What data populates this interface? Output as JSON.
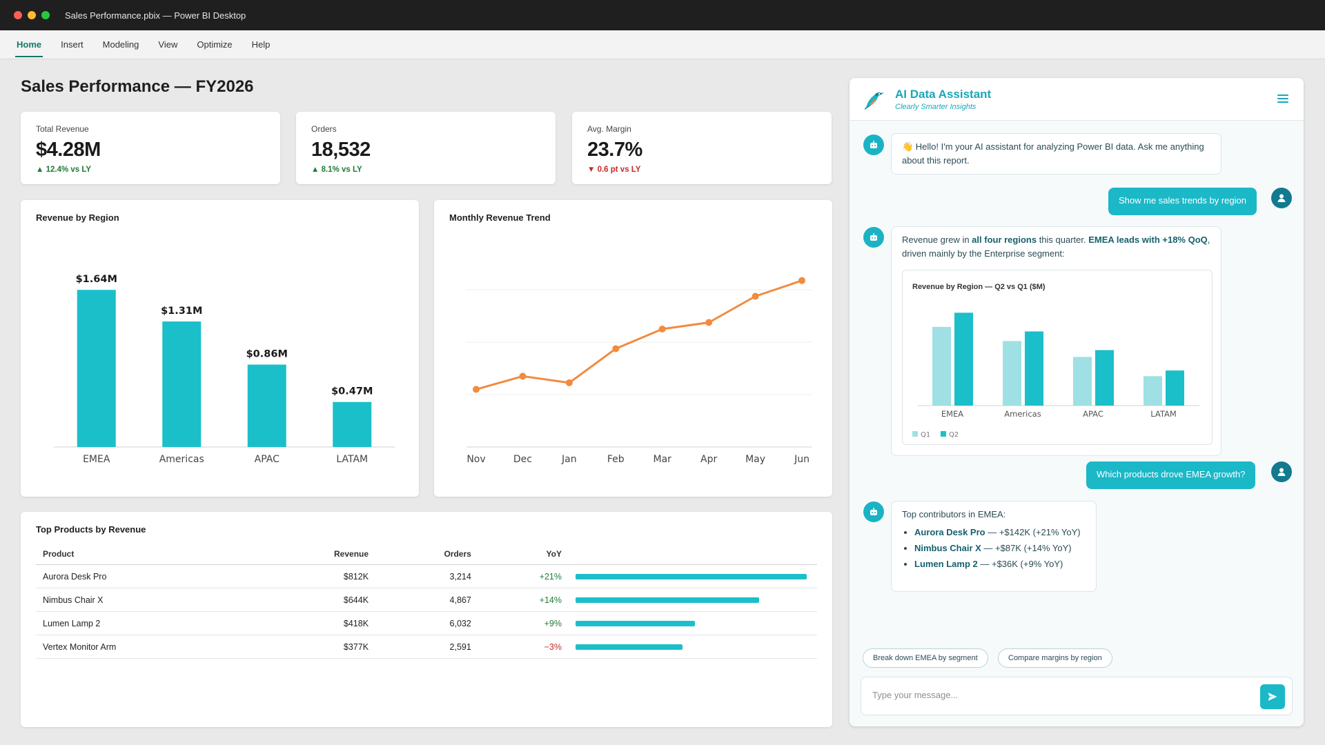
{
  "window": {
    "title": "Sales Performance.pbix — Power BI Desktop"
  },
  "ribbon": {
    "tabs": [
      "Home",
      "Insert",
      "Modeling",
      "View",
      "Optimize",
      "Help"
    ],
    "active": "Home"
  },
  "report": {
    "title": "Sales Performance — FY2026",
    "kpis": [
      {
        "label": "Total Revenue",
        "value": "$4.28M",
        "delta": "▲ 12.4% vs LY",
        "trend": "up"
      },
      {
        "label": "Orders",
        "value": "18,532",
        "delta": "▲ 8.1% vs LY",
        "trend": "up"
      },
      {
        "label": "Avg. Margin",
        "value": "23.7%",
        "delta": "▼ 0.6 pt vs LY",
        "trend": "down"
      }
    ]
  },
  "chart_data": [
    {
      "type": "bar",
      "title": "Revenue by Region",
      "categories": [
        "EMEA",
        "Americas",
        "APAC",
        "LATAM"
      ],
      "values": [
        1.64,
        1.31,
        0.86,
        0.47
      ],
      "value_labels": [
        "$1.64M",
        "$1.31M",
        "$0.86M",
        "$0.47M"
      ],
      "color": "#1bbfc9",
      "ylim": [
        0,
        1.8
      ]
    },
    {
      "type": "line",
      "title": "Monthly Revenue Trend",
      "categories": [
        "Nov",
        "Dec",
        "Jan",
        "Feb",
        "Mar",
        "Apr",
        "May",
        "Jun"
      ],
      "values": [
        0.62,
        0.67,
        0.645,
        0.775,
        0.85,
        0.875,
        0.975,
        1.035
      ],
      "color": "#f28a3f",
      "ylim": [
        0.4,
        1.0
      ],
      "grid": true
    },
    {
      "type": "bar",
      "title": "Revenue by Region — Q2 vs Q1 ($M)",
      "categories": [
        "EMEA",
        "Americas",
        "APAC",
        "LATAM"
      ],
      "series": [
        {
          "name": "Q1",
          "values": [
            1.39,
            1.14,
            0.86,
            0.52
          ],
          "color": "#9fe0e4"
        },
        {
          "name": "Q2",
          "values": [
            1.64,
            1.31,
            0.98,
            0.62
          ],
          "color": "#1bbfc9"
        }
      ],
      "ylim": [
        0,
        1.9
      ],
      "legend": "bottom-left"
    }
  ],
  "products_table": {
    "title": "Top Products by Revenue",
    "columns": [
      "Product",
      "Revenue",
      "Orders",
      "YoY"
    ],
    "rows": [
      {
        "product": "Aurora Desk Pro",
        "revenue": "$812K",
        "orders": "3,214",
        "yoy": "+21%",
        "trend": "up",
        "share": 1.0
      },
      {
        "product": "Nimbus Chair X",
        "revenue": "$644K",
        "orders": "4,867",
        "yoy": "+14%",
        "trend": "up",
        "share": 0.793
      },
      {
        "product": "Lumen Lamp 2",
        "revenue": "$418K",
        "orders": "6,032",
        "yoy": "+9%",
        "trend": "up",
        "share": 0.515
      },
      {
        "product": "Vertex Monitor Arm",
        "revenue": "$377K",
        "orders": "2,591",
        "yoy": "−3%",
        "trend": "down",
        "share": 0.464
      }
    ]
  },
  "assistant": {
    "title": "AI Data Assistant",
    "subtitle": "Clearly Smarter Insights",
    "messages": {
      "greeting": "👋 Hello! I'm your AI assistant for analyzing Power BI data. Ask me anything about this report.",
      "user_1": "Show me sales trends by region",
      "reply_1": {
        "t1": "Revenue grew in ",
        "b1": "all four regions",
        "t2": " this quarter. ",
        "b2": "EMEA leads with +18% QoQ",
        "t3": ", driven mainly by the Enterprise segment:"
      },
      "user_2": "Which products drove EMEA growth?",
      "reply_2": {
        "intro": "Top contributors in EMEA:",
        "items": [
          {
            "name": "Aurora Desk Pro",
            "detail": " — +$142K (+21% YoY)"
          },
          {
            "name": "Nimbus Chair X",
            "detail": " — +$87K (+14% YoY)"
          },
          {
            "name": "Lumen Lamp 2",
            "detail": " — +$36K (+9% YoY)"
          }
        ]
      }
    },
    "suggestions": [
      "Break down EMEA by segment",
      "Compare margins by region"
    ],
    "input": {
      "placeholder": "Type your message...",
      "value": ""
    }
  }
}
